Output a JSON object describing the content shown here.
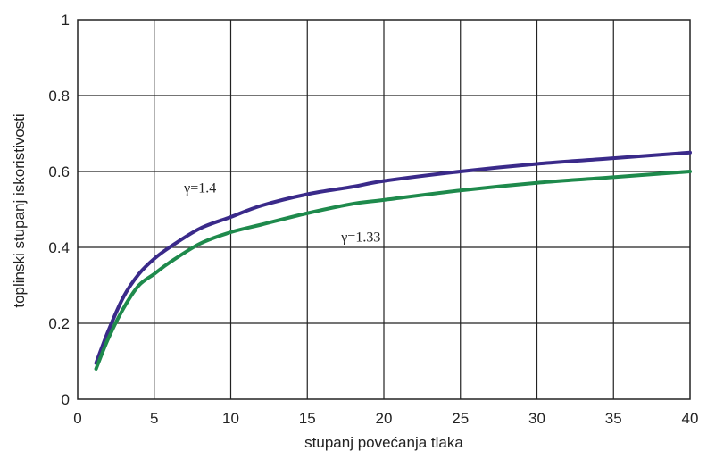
{
  "chart_data": {
    "type": "line",
    "xlabel": "stupanj povećanja tlaka",
    "ylabel": "toplinski stupanj iskoristivosti",
    "xlim": [
      0,
      40
    ],
    "ylim": [
      0,
      1
    ],
    "xticks": [
      0,
      5,
      10,
      15,
      20,
      25,
      30,
      35,
      40
    ],
    "yticks": [
      0,
      0.2,
      0.4,
      0.6,
      0.8,
      1
    ],
    "xtick_labels": [
      "0",
      "5",
      "10",
      "15",
      "20",
      "25",
      "30",
      "35",
      "40"
    ],
    "ytick_labels": [
      "0",
      "0.2",
      "0.4",
      "0.6",
      "0.8",
      "1"
    ],
    "grid": true,
    "series": [
      {
        "name": "γ=1.4",
        "color": "#3a2a8a",
        "x": [
          1.2,
          2,
          3,
          4,
          5,
          6,
          8,
          10,
          12,
          15,
          18,
          20,
          25,
          30,
          35,
          40
        ],
        "y": [
          0.095,
          0.18,
          0.27,
          0.33,
          0.37,
          0.4,
          0.45,
          0.48,
          0.51,
          0.54,
          0.56,
          0.575,
          0.6,
          0.62,
          0.635,
          0.65
        ]
      },
      {
        "name": "γ=1.33",
        "color": "#1e8a4c",
        "x": [
          1.2,
          2,
          3,
          4,
          5,
          6,
          8,
          10,
          12,
          15,
          18,
          20,
          25,
          30,
          35,
          40
        ],
        "y": [
          0.08,
          0.16,
          0.24,
          0.3,
          0.33,
          0.36,
          0.41,
          0.44,
          0.46,
          0.49,
          0.515,
          0.525,
          0.55,
          0.57,
          0.585,
          0.6
        ]
      }
    ],
    "annotations": [
      {
        "text": "γ=1.4",
        "x": 8,
        "y": 0.545
      },
      {
        "text": "γ=1.33",
        "x": 18.5,
        "y": 0.415
      }
    ]
  }
}
